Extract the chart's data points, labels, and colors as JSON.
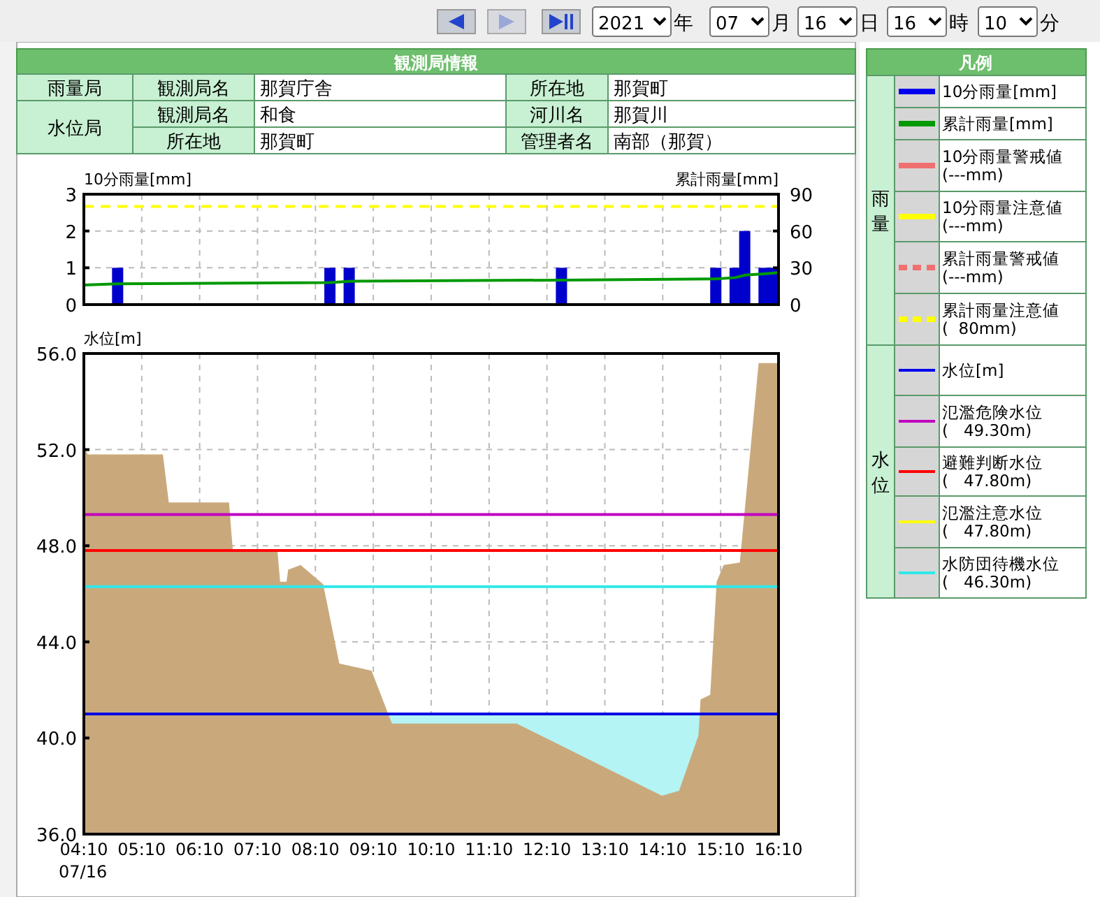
{
  "chart_data": [
    {
      "type": "other",
      "annotations": [
        "2021",
        "年",
        "07",
        "月",
        "16",
        "日",
        "16",
        "時",
        "10",
        "分"
      ]
    },
    {
      "type": "other",
      "title": "観測局情報",
      "annotations": [
        "雨量局",
        "観測局名",
        "那賀庁舎",
        "所在地",
        "那賀町",
        "水位局",
        "観測局名",
        "和食",
        "河川名",
        "那賀川",
        "所在地",
        "那賀町",
        "管理者名",
        "南部（那賀）"
      ]
    },
    {
      "type": "other",
      "title": "凡例",
      "annotations": [
        "雨量",
        "10分雨量[mm]",
        "累計雨量[mm]",
        "10分雨量警戒値\n(---mm)",
        "10分雨量注意値\n(---mm)",
        "累計雨量警戒値\n(---mm)",
        "累計雨量注意値\n(  80mm)",
        "水位",
        "水位[m]",
        "氾濫危険水位\n(   49.30m)",
        "避難判断水位\n(   47.80m)",
        "氾濫注意水位\n(   47.80m)",
        "水防団待機水位\n(   46.30m)"
      ]
    },
    {
      "type": "bar",
      "ylabel": "10分雨量[mm]",
      "y2label": "累計雨量[mm]",
      "xlim": [
        4.1667,
        16.1667
      ],
      "tick_labels": "y",
      "xticks": [
        4.1667,
        5.1667,
        6.1667,
        7.1667,
        8.1667,
        9.1667,
        10.1667,
        11.1667,
        12.1667,
        13.1667,
        14.1667,
        15.1667,
        16.1667
      ],
      "ylim": [
        0,
        3
      ],
      "yticks": [
        0,
        1,
        2,
        3
      ],
      "y2lim": [
        0,
        90
      ],
      "y2ticks": [
        0,
        30,
        60,
        90
      ],
      "grid": true,
      "series": [
        {
          "type": "bar",
          "color": "#0000cc",
          "x": [
            4.75,
            8.417,
            8.75,
            12.417,
            15.083,
            15.417,
            15.583,
            15.917,
            16.083
          ],
          "values": [
            1,
            1,
            1,
            1,
            1,
            1,
            2,
            1,
            1
          ]
        },
        {
          "type": "line",
          "axis": "y2",
          "color": "#009900",
          "x": [
            4.1667,
            4.75,
            8.417,
            8.75,
            12.417,
            15.083,
            15.417,
            15.583,
            15.917,
            16.1667
          ],
          "values": [
            16,
            17,
            18,
            19,
            20,
            21,
            22,
            24,
            25,
            26
          ]
        }
      ],
      "ref_lines": [
        {
          "axis": "y2",
          "value": 80,
          "color": "#ffff00",
          "line_style": "dashed"
        }
      ]
    },
    {
      "type": "area",
      "ylabel": "水位[m]",
      "xlim": [
        4.1667,
        16.1667
      ],
      "xticks": [
        {
          "value": 4.1667,
          "label": "04:10"
        },
        {
          "value": 5.1667,
          "label": "05:10"
        },
        {
          "value": 6.1667,
          "label": "06:10"
        },
        {
          "value": 7.1667,
          "label": "07:10"
        },
        {
          "value": 8.1667,
          "label": "08:10"
        },
        {
          "value": 9.1667,
          "label": "09:10"
        },
        {
          "value": 10.1667,
          "label": "10:10"
        },
        {
          "value": 11.1667,
          "label": "11:10"
        },
        {
          "value": 12.1667,
          "label": "12:10"
        },
        {
          "value": 13.1667,
          "label": "13:10"
        },
        {
          "value": 14.1667,
          "label": "14:10"
        },
        {
          "value": 15.1667,
          "label": "15:10"
        },
        {
          "value": 16.1667,
          "label": "16:10"
        }
      ],
      "ylim": [
        36,
        56
      ],
      "yticks": [
        {
          "value": 36,
          "label": "36.0"
        },
        {
          "value": 40,
          "label": "40.0"
        },
        {
          "value": 44,
          "label": "44.0"
        },
        {
          "value": 48,
          "label": "48.0"
        },
        {
          "value": 52,
          "label": "52.0"
        },
        {
          "value": 56,
          "label": "56.0"
        }
      ],
      "grid": true,
      "annotations": [
        "07/16"
      ],
      "series": [
        {
          "type": "area",
          "color": "#b4f4f4",
          "x": [
            9.41,
            14.8
          ],
          "values": [
            41,
            41
          ]
        },
        {
          "type": "area",
          "color": "#c9a97c",
          "x": [
            4.1667,
            4.232,
            5.532,
            5.634,
            6.674,
            6.74,
            7.51,
            7.557,
            7.668,
            7.696,
            7.91,
            8.3,
            8.579,
            9.136,
            9.489,
            11.644,
            14.151,
            14.448,
            14.783,
            14.82,
            14.987,
            15.098,
            15.219,
            15.498,
            15.823,
            16.1667
          ],
          "values": [
            52.2,
            51.8,
            51.8,
            49.8,
            49.8,
            47.8,
            47.8,
            46.5,
            46.5,
            47.0,
            47.2,
            46.4,
            43.1,
            42.8,
            40.6,
            40.6,
            37.6,
            37.8,
            40.1,
            41.6,
            41.8,
            46.5,
            47.2,
            47.3,
            55.6,
            55.6
          ]
        },
        {
          "type": "line",
          "color": "#0000e0",
          "x": [
            4.1667,
            16.1667
          ],
          "values": [
            41,
            41
          ]
        }
      ],
      "ref_lines": [
        {
          "axis": "y",
          "value": 49.3,
          "color": "#c000c0"
        },
        {
          "axis": "y",
          "value": 47.8,
          "color": "#ff0000"
        },
        {
          "axis": "y",
          "value": 46.3,
          "color": "#30e8e8"
        }
      ]
    }
  ]
}
